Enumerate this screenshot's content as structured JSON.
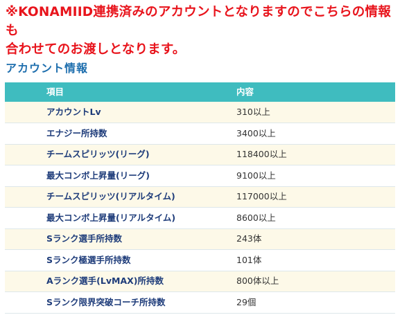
{
  "notice": {
    "line1": "※KONAMIID連携済みのアカウントとなりますのでこちらの情報も",
    "line2": "合わせてのお渡しとなります。"
  },
  "section_title": "アカウント情報",
  "table": {
    "headers": [
      "項目",
      "内容"
    ],
    "rows": [
      {
        "item": "アカウントLv",
        "value": "310以上"
      },
      {
        "item": "エナジー所持数",
        "value": "3400以上"
      },
      {
        "item": "チームスピリッツ(リーグ)",
        "value": "118400以上"
      },
      {
        "item": "最大コンボ上昇量(リーグ)",
        "value": "9100以上"
      },
      {
        "item": "チームスピリッツ(リアルタイム)",
        "value": "117000以上"
      },
      {
        "item": "最大コンボ上昇量(リアルタイム)",
        "value": "8600以上"
      },
      {
        "item": "Sランク選手所持数",
        "value": "243体"
      },
      {
        "item": "Sランク極選手所持数",
        "value": "101体"
      },
      {
        "item": "Aランク選手(LvMAX)所持数",
        "value": "800体以上"
      },
      {
        "item": "Sランク限界突破コーチ所持数",
        "value": "29個"
      }
    ]
  },
  "colors": {
    "notice": "#e8141c",
    "title": "#1f6fae",
    "header_bg": "#3fbcbf",
    "row_alt_bg": "#fdf9e8"
  }
}
